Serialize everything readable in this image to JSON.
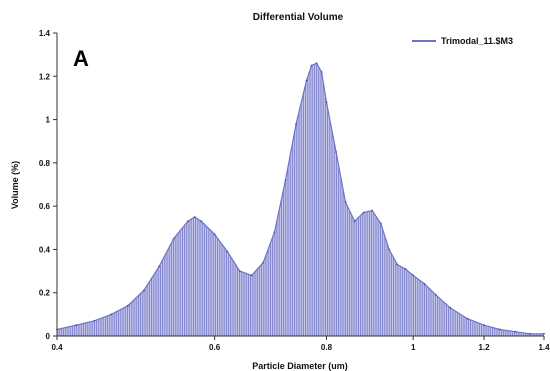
{
  "panel_label": "A",
  "chart_data": {
    "type": "area",
    "title": "Differential Volume",
    "xlabel": "Particle Diameter (um)",
    "ylabel": "Volume (%)",
    "x_scale": "log",
    "xlim": [
      0.4,
      1.4
    ],
    "ylim": [
      0,
      1.4
    ],
    "x_ticks": [
      0.4,
      0.6,
      0.8,
      1,
      1.2,
      1.4
    ],
    "x_tick_labels": [
      "0.4",
      "0.6",
      "0.8",
      "1",
      "1.2",
      "1.4"
    ],
    "y_ticks": [
      0,
      0.2,
      0.4,
      0.6,
      0.8,
      1,
      1.2,
      1.4
    ],
    "y_tick_labels": [
      "0",
      "0.2",
      "0.4",
      "0.6",
      "0.8",
      "1",
      "1.2",
      "1.4"
    ],
    "grid": false,
    "legend_position": "top-right",
    "color": "#6f73c4",
    "series": [
      {
        "name": "Trimodal_11.$M3",
        "x": [
          0.4,
          0.42,
          0.44,
          0.46,
          0.48,
          0.5,
          0.52,
          0.54,
          0.56,
          0.57,
          0.58,
          0.6,
          0.62,
          0.64,
          0.66,
          0.68,
          0.7,
          0.72,
          0.74,
          0.76,
          0.77,
          0.78,
          0.79,
          0.8,
          0.82,
          0.84,
          0.86,
          0.88,
          0.9,
          0.92,
          0.94,
          0.96,
          0.98,
          1.0,
          1.03,
          1.06,
          1.1,
          1.15,
          1.2,
          1.25,
          1.3,
          1.35,
          1.4
        ],
        "y": [
          0.03,
          0.05,
          0.07,
          0.1,
          0.14,
          0.21,
          0.32,
          0.45,
          0.53,
          0.55,
          0.53,
          0.47,
          0.39,
          0.3,
          0.28,
          0.34,
          0.48,
          0.72,
          0.98,
          1.18,
          1.25,
          1.26,
          1.22,
          1.08,
          0.85,
          0.62,
          0.53,
          0.57,
          0.58,
          0.52,
          0.4,
          0.33,
          0.31,
          0.28,
          0.24,
          0.19,
          0.13,
          0.08,
          0.05,
          0.03,
          0.02,
          0.01,
          0.01
        ]
      }
    ]
  }
}
